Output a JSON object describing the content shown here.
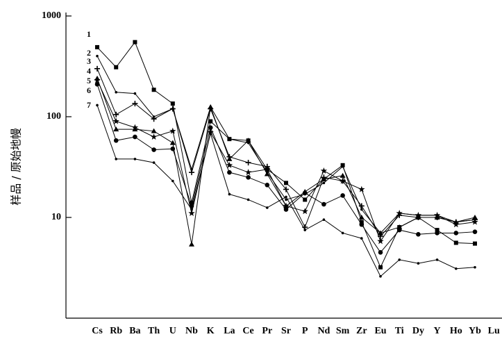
{
  "chart_data": {
    "type": "line",
    "log_y": true,
    "ylabel": "样品 / 原始地幔",
    "categories": [
      "Cs",
      "Rb",
      "Ba",
      "Th",
      "U",
      "Nb",
      "K",
      "La",
      "Ce",
      "Pr",
      "Sr",
      "P",
      "Nd",
      "Sm",
      "Zr",
      "Eu",
      "Ti",
      "Dy",
      "Y",
      "Ho",
      "Yb",
      "Lu"
    ],
    "ylim": [
      1,
      1000
    ],
    "yticks": [
      10,
      100,
      1000
    ],
    "series": [
      {
        "name": "1",
        "color": "#000000",
        "marker": "square",
        "values": [
          490,
          310,
          550,
          185,
          135,
          14,
          90,
          60,
          58,
          30,
          22,
          15,
          24,
          33,
          9,
          3.2,
          8,
          10,
          7.5,
          5.6,
          5.5,
          null
        ]
      },
      {
        "name": "2",
        "color": "#000000",
        "marker": "dot",
        "values": [
          400,
          175,
          170,
          100,
          120,
          30,
          125,
          60,
          55,
          28,
          15,
          17,
          22,
          32,
          12,
          7,
          11,
          10.5,
          10.5,
          9,
          9.5,
          null
        ]
      },
      {
        "name": "3",
        "color": "#000000",
        "marker": "plus",
        "values": [
          300,
          105,
          135,
          95,
          120,
          28,
          120,
          40,
          35,
          32,
          19,
          8,
          25,
          23,
          13,
          6.5,
          10.5,
          10,
          10,
          9,
          9.5,
          null
        ]
      },
      {
        "name": "4",
        "color": "#000000",
        "marker": "star",
        "values": [
          230,
          90,
          78,
          63,
          72,
          11,
          70,
          33,
          28,
          30,
          13,
          11.5,
          29,
          23,
          19,
          5.8,
          11,
          10.5,
          10.5,
          8.5,
          9,
          null
        ]
      },
      {
        "name": "5",
        "color": "#000000",
        "marker": "triangle",
        "values": [
          240,
          75,
          75,
          72,
          55,
          5.4,
          125,
          38,
          58,
          27,
          13,
          18,
          24,
          26,
          10,
          7,
          8,
          10,
          10,
          9,
          10,
          null
        ]
      },
      {
        "name": "6",
        "color": "#000000",
        "marker": "circle",
        "values": [
          210,
          58,
          63,
          47,
          48,
          13,
          78,
          28,
          25,
          21,
          12,
          17.5,
          13.5,
          16.5,
          8.5,
          4.5,
          7.5,
          6.8,
          7,
          7,
          7.2,
          null
        ]
      },
      {
        "name": "7",
        "color": "#000000",
        "marker": "dot",
        "values": [
          130,
          38,
          38,
          35,
          23,
          12,
          68,
          17,
          15,
          12.5,
          16,
          7.5,
          9.5,
          7,
          6.2,
          2.6,
          3.8,
          3.5,
          3.8,
          3.1,
          3.2,
          null
        ]
      }
    ]
  }
}
